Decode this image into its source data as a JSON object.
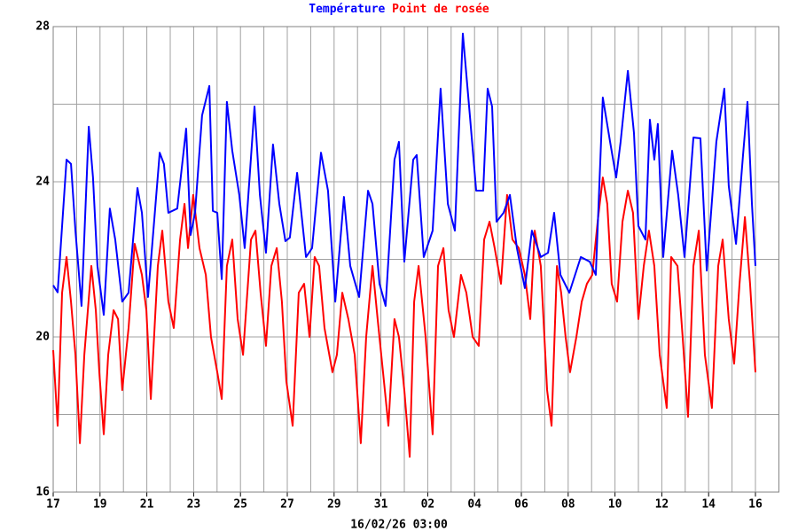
{
  "chart_data": {
    "type": "line",
    "footer": "16/02/26 03:00",
    "xlim": [
      0,
      31
    ],
    "ylim": [
      16,
      28
    ],
    "xticks": [
      {
        "value": 0,
        "label": "17"
      },
      {
        "value": 2,
        "label": "19"
      },
      {
        "value": 4,
        "label": "21"
      },
      {
        "value": 6,
        "label": "23"
      },
      {
        "value": 8,
        "label": "25"
      },
      {
        "value": 10,
        "label": "27"
      },
      {
        "value": 12,
        "label": "29"
      },
      {
        "value": 14,
        "label": "31"
      },
      {
        "value": 16,
        "label": "02"
      },
      {
        "value": 18,
        "label": "04"
      },
      {
        "value": 20,
        "label": "06"
      },
      {
        "value": 22,
        "label": "08"
      },
      {
        "value": 24,
        "label": "10"
      },
      {
        "value": 26,
        "label": "12"
      },
      {
        "value": 28,
        "label": "14"
      },
      {
        "value": 30,
        "label": "16"
      }
    ],
    "xminor_ticks": [
      1,
      3,
      5,
      7,
      9,
      11,
      13,
      15,
      17,
      19,
      21,
      23,
      25,
      27,
      29
    ],
    "yticks": [
      16,
      20,
      24,
      28
    ],
    "yminor_ticks": [
      18,
      22,
      26
    ],
    "grid": true,
    "series": [
      {
        "name": "Température",
        "color": "#0000ff",
        "x": [
          0,
          0.19,
          0.57,
          0.76,
          0.95,
          1.21,
          1.52,
          1.7,
          1.89,
          2.16,
          2.42,
          2.65,
          2.95,
          3.22,
          3.6,
          3.79,
          4.05,
          4.55,
          4.73,
          4.92,
          5.3,
          5.68,
          5.87,
          6.06,
          6.36,
          6.67,
          6.82,
          7.01,
          7.2,
          7.42,
          7.65,
          7.95,
          8.18,
          8.6,
          8.83,
          9.09,
          9.39,
          9.66,
          9.92,
          10.11,
          10.42,
          10.8,
          11.06,
          11.44,
          11.74,
          12.05,
          12.42,
          12.69,
          13.07,
          13.45,
          13.64,
          13.94,
          14.2,
          14.58,
          14.77,
          15.0,
          15.38,
          15.53,
          15.83,
          16.21,
          16.55,
          16.86,
          17.16,
          17.5,
          17.8,
          18.07,
          18.37,
          18.56,
          18.75,
          18.94,
          19.24,
          19.51,
          19.81,
          20.15,
          20.45,
          20.83,
          21.14,
          21.4,
          21.67,
          22.05,
          22.54,
          22.92,
          23.18,
          23.48,
          23.79,
          24.05,
          24.24,
          24.55,
          24.81,
          25.0,
          25.3,
          25.49,
          25.68,
          25.83,
          26.06,
          26.44,
          26.7,
          26.97,
          27.35,
          27.65,
          27.92,
          28.33,
          28.67,
          28.86,
          29.17,
          29.47,
          29.66,
          29.85,
          30.0
        ],
        "values": [
          21.33,
          21.15,
          24.57,
          24.46,
          22.74,
          20.8,
          25.42,
          24.11,
          21.83,
          20.57,
          23.31,
          22.51,
          20.91,
          21.14,
          23.84,
          23.2,
          21.03,
          24.75,
          24.46,
          23.2,
          23.31,
          25.37,
          22.63,
          23.2,
          25.71,
          26.47,
          23.25,
          23.2,
          21.49,
          26.06,
          24.8,
          23.66,
          22.29,
          25.94,
          23.66,
          22.17,
          24.96,
          23.43,
          22.47,
          22.56,
          24.23,
          22.06,
          22.29,
          24.75,
          23.77,
          20.91,
          23.61,
          21.83,
          21.03,
          23.77,
          23.43,
          21.37,
          20.8,
          24.57,
          25.03,
          21.94,
          24.57,
          24.69,
          22.06,
          22.74,
          26.4,
          23.43,
          22.74,
          27.82,
          25.71,
          23.77,
          23.77,
          26.4,
          25.94,
          22.97,
          23.2,
          23.66,
          22.29,
          21.26,
          22.74,
          22.06,
          22.17,
          23.2,
          21.6,
          21.14,
          22.06,
          21.94,
          21.6,
          26.17,
          25.03,
          24.11,
          25.03,
          26.86,
          25.26,
          22.86,
          22.51,
          25.6,
          24.57,
          25.49,
          22.06,
          24.8,
          23.66,
          22.06,
          25.14,
          25.12,
          21.71,
          25.03,
          26.4,
          23.89,
          22.4,
          24.69,
          26.06,
          23.43,
          21.83
        ]
      },
      {
        "name": "Point de rosée",
        "color": "#ff0000",
        "x": [
          0,
          0.19,
          0.38,
          0.57,
          0.76,
          0.95,
          1.14,
          1.33,
          1.63,
          1.82,
          1.97,
          2.16,
          2.35,
          2.58,
          2.77,
          2.95,
          3.22,
          3.48,
          3.79,
          3.98,
          4.17,
          4.47,
          4.66,
          4.92,
          5.15,
          5.42,
          5.61,
          5.76,
          5.98,
          6.25,
          6.52,
          6.74,
          7.01,
          7.2,
          7.42,
          7.65,
          7.88,
          8.11,
          8.45,
          8.64,
          8.86,
          9.09,
          9.32,
          9.55,
          9.77,
          9.96,
          10.23,
          10.49,
          10.72,
          10.95,
          11.17,
          11.36,
          11.59,
          11.93,
          12.12,
          12.35,
          12.61,
          12.88,
          13.14,
          13.37,
          13.64,
          13.86,
          14.09,
          14.32,
          14.58,
          14.77,
          15.0,
          15.23,
          15.42,
          15.61,
          15.91,
          16.21,
          16.44,
          16.67,
          16.89,
          17.12,
          17.42,
          17.65,
          17.92,
          18.18,
          18.41,
          18.64,
          18.86,
          19.13,
          19.39,
          19.62,
          19.89,
          20.15,
          20.38,
          20.57,
          20.83,
          21.1,
          21.29,
          21.52,
          21.7,
          21.89,
          22.08,
          22.35,
          22.58,
          22.8,
          23.03,
          23.26,
          23.48,
          23.67,
          23.86,
          24.09,
          24.32,
          24.55,
          24.77,
          25.0,
          25.23,
          25.45,
          25.68,
          25.91,
          26.21,
          26.4,
          26.67,
          26.89,
          27.12,
          27.35,
          27.58,
          27.84,
          28.14,
          28.41,
          28.6,
          28.86,
          29.09,
          29.32,
          29.55,
          29.77,
          30.0
        ],
        "values": [
          19.66,
          17.71,
          21.14,
          22.06,
          20.91,
          19.54,
          17.26,
          19.54,
          21.83,
          20.69,
          19.09,
          17.49,
          19.54,
          20.69,
          20.46,
          18.63,
          20.23,
          22.4,
          21.6,
          20.69,
          18.4,
          21.83,
          22.74,
          20.91,
          20.23,
          22.51,
          23.43,
          22.29,
          23.66,
          22.29,
          21.6,
          20.0,
          19.09,
          18.4,
          21.83,
          22.51,
          20.46,
          19.54,
          22.51,
          22.74,
          21.14,
          19.77,
          21.83,
          22.29,
          20.91,
          18.86,
          17.71,
          21.14,
          21.37,
          20.0,
          22.06,
          21.83,
          20.23,
          19.09,
          19.54,
          21.14,
          20.46,
          19.54,
          17.26,
          20.0,
          21.83,
          20.46,
          19.09,
          17.71,
          20.46,
          20.0,
          18.63,
          16.91,
          20.91,
          21.83,
          20.0,
          17.49,
          21.83,
          22.29,
          20.69,
          20.0,
          21.6,
          21.14,
          20.0,
          19.77,
          22.51,
          22.97,
          22.29,
          21.37,
          23.66,
          22.51,
          22.29,
          21.6,
          20.46,
          22.74,
          21.83,
          18.63,
          17.71,
          21.83,
          21.14,
          20.0,
          19.09,
          20.0,
          20.91,
          21.37,
          21.6,
          22.97,
          24.11,
          23.43,
          21.37,
          20.91,
          22.97,
          23.77,
          23.2,
          20.46,
          21.83,
          22.74,
          21.83,
          19.54,
          18.17,
          22.06,
          21.83,
          20.0,
          17.94,
          21.83,
          22.74,
          19.54,
          18.17,
          21.83,
          22.51,
          20.46,
          19.31,
          21.37,
          23.09,
          21.37,
          19.09
        ]
      }
    ]
  }
}
